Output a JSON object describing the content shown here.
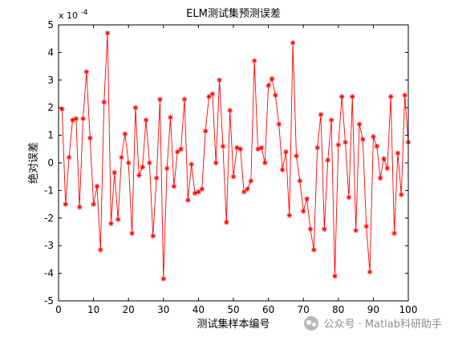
{
  "chart_data": {
    "type": "line",
    "title": "ELM测试集预测误差",
    "xlabel": "测试集样本编号",
    "ylabel": "绝对误差",
    "y_multiplier_base": "x 10",
    "y_multiplier_exp": "-4",
    "xlim": [
      0,
      100
    ],
    "ylim": [
      -5,
      5
    ],
    "x_ticks": [
      0,
      10,
      20,
      30,
      40,
      50,
      60,
      70,
      80,
      90,
      100
    ],
    "y_ticks": [
      -5,
      -4,
      -3,
      -2,
      -1,
      0,
      1,
      2,
      3,
      4,
      5
    ],
    "grid": false,
    "series": [
      {
        "color": "#ff0000",
        "marker": "*",
        "x": [
          1,
          2,
          3,
          4,
          5,
          6,
          7,
          8,
          9,
          10,
          11,
          12,
          13,
          14,
          15,
          16,
          17,
          18,
          19,
          20,
          21,
          22,
          23,
          24,
          25,
          26,
          27,
          28,
          29,
          30,
          31,
          32,
          33,
          34,
          35,
          36,
          37,
          38,
          39,
          40,
          41,
          42,
          43,
          44,
          45,
          46,
          47,
          48,
          49,
          50,
          51,
          52,
          53,
          54,
          55,
          56,
          57,
          58,
          59,
          60,
          61,
          62,
          63,
          64,
          65,
          66,
          67,
          68,
          69,
          70,
          71,
          72,
          73,
          74,
          75,
          76,
          77,
          78,
          79,
          80,
          81,
          82,
          83,
          84,
          85,
          86,
          87,
          88,
          89,
          90,
          91,
          92,
          93,
          94,
          95,
          96,
          97,
          98,
          99,
          100
        ],
        "values": [
          1.95,
          -1.5,
          0.2,
          1.55,
          1.6,
          -1.6,
          1.6,
          3.3,
          0.9,
          -1.5,
          -0.85,
          -3.15,
          2.2,
          4.7,
          -2.2,
          -0.35,
          -2.05,
          0.2,
          1.05,
          0.0,
          -2.55,
          2.0,
          -0.45,
          -0.15,
          1.55,
          0.0,
          -2.65,
          -0.55,
          2.3,
          -4.2,
          -0.2,
          1.65,
          -0.85,
          0.4,
          0.5,
          2.3,
          -1.35,
          -0.05,
          -1.1,
          -1.05,
          -0.95,
          1.15,
          2.4,
          2.5,
          0.0,
          3.0,
          0.6,
          -2.15,
          1.9,
          -0.5,
          0.55,
          0.5,
          -1.05,
          -0.95,
          -0.65,
          3.7,
          0.5,
          0.55,
          0.0,
          2.8,
          3.05,
          2.45,
          1.4,
          -0.25,
          0.4,
          -1.9,
          4.35,
          0.25,
          -0.65,
          -1.75,
          -1.3,
          -2.4,
          -3.15,
          0.55,
          1.75,
          -2.4,
          0.1,
          1.55,
          -4.1,
          0.65,
          2.4,
          0.75,
          -1.25,
          2.4,
          -2.45,
          1.4,
          0.85,
          -2.3,
          -3.95,
          0.95,
          0.6,
          -0.55,
          0.15,
          -0.2,
          2.4,
          -2.55,
          0.35,
          -1.15,
          2.45,
          0.75
        ]
      }
    ]
  },
  "watermark": {
    "icon": "wechat-icon",
    "text": "公众号 · Matlab科研助手"
  }
}
